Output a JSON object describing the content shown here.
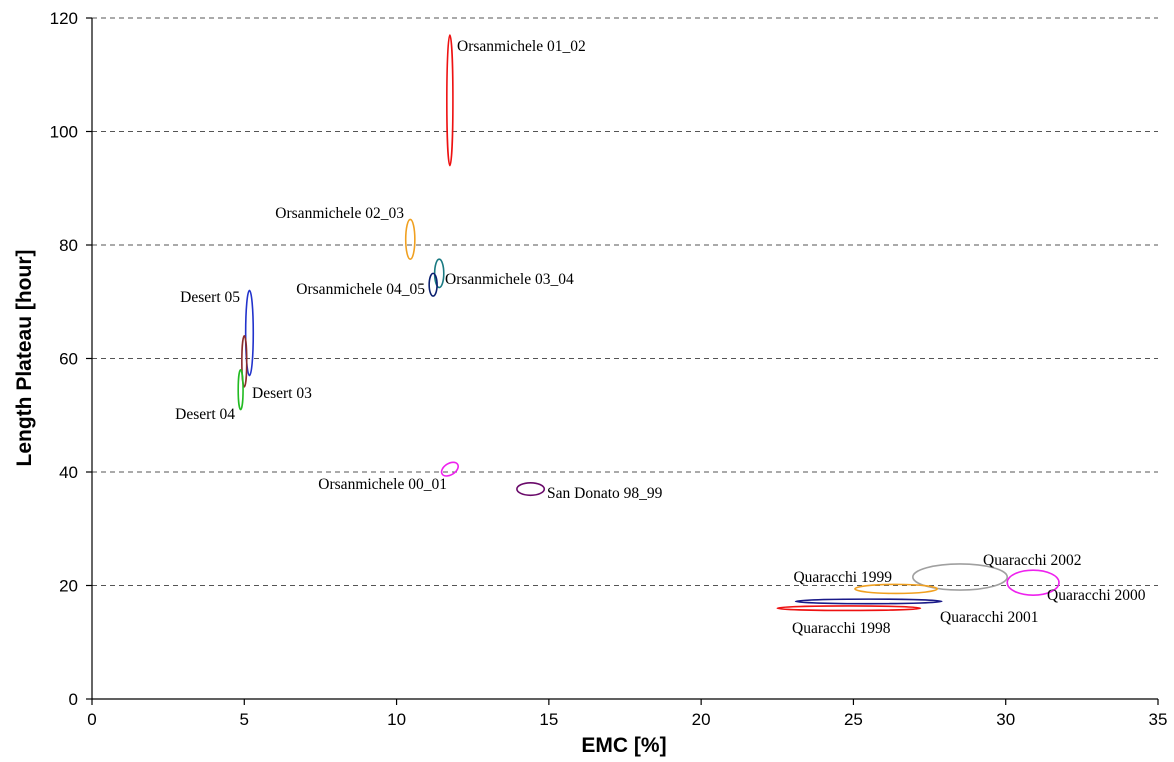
{
  "chart_data": {
    "type": "scatter",
    "title": "",
    "xlabel": "EMC  [%]",
    "ylabel": "Length Plateau [hour]",
    "xlim": [
      0,
      35
    ],
    "ylim": [
      0,
      120
    ],
    "xticks": [
      0,
      5,
      10,
      15,
      20,
      25,
      30,
      35
    ],
    "yticks": [
      0,
      20,
      40,
      60,
      80,
      100,
      120
    ],
    "grid": "horizontal dashed",
    "legend": "none",
    "marker": "ellipse",
    "series": [
      {
        "name": "Orsanmichele 01_02",
        "x": 11.75,
        "y": 105.5,
        "x_range": [
          11.65,
          11.85
        ],
        "y_range": [
          94,
          117
        ],
        "angle_deg": 0,
        "color": "#ee1111"
      },
      {
        "name": "Orsanmichele 02_03",
        "x": 10.45,
        "y": 81,
        "x_range": [
          10.3,
          10.6
        ],
        "y_range": [
          77.5,
          84.5
        ],
        "angle_deg": 0,
        "color": "#f0a020"
      },
      {
        "name": "Orsanmichele 03_04",
        "x": 11.4,
        "y": 75,
        "x_range": [
          11.25,
          11.55
        ],
        "y_range": [
          72.5,
          77.5
        ],
        "angle_deg": 0,
        "color": "#1a7a82"
      },
      {
        "name": "Orsanmichele 04_05",
        "x": 11.2,
        "y": 73,
        "x_range": [
          11.07,
          11.33
        ],
        "y_range": [
          71,
          75
        ],
        "angle_deg": 0,
        "color": "#0a1f6e"
      },
      {
        "name": "Desert 05",
        "x": 5.17,
        "y": 64.5,
        "x_range": [
          5.05,
          5.3
        ],
        "y_range": [
          57,
          72
        ],
        "angle_deg": 0,
        "color": "#2233cc"
      },
      {
        "name": "Desert 03",
        "x": 5.0,
        "y": 59.5,
        "x_range": [
          4.92,
          5.08
        ],
        "y_range": [
          55,
          64
        ],
        "angle_deg": 0,
        "color": "#8a2b2b"
      },
      {
        "name": "Desert 04",
        "x": 4.88,
        "y": 54.5,
        "x_range": [
          4.8,
          4.96
        ],
        "y_range": [
          51,
          58
        ],
        "angle_deg": 0,
        "color": "#22bb22"
      },
      {
        "name": "Orsanmichele 00_01",
        "x": 11.75,
        "y": 40.5,
        "x_range": [
          11.45,
          12.05
        ],
        "y_range": [
          39.5,
          41.5
        ],
        "angle_deg": 32,
        "color": "#ee22ee"
      },
      {
        "name": "San Donato 98_99",
        "x": 14.4,
        "y": 37,
        "x_range": [
          13.95,
          14.85
        ],
        "y_range": [
          35.9,
          38.1
        ],
        "angle_deg": 0,
        "color": "#6a0a6a"
      },
      {
        "name": "Quaracchi 2002",
        "x": 28.5,
        "y": 21.5,
        "x_range": [
          26.95,
          30.05
        ],
        "y_range": [
          19.2,
          23.8
        ],
        "angle_deg": 0,
        "color": "#a0a0a0"
      },
      {
        "name": "Quaracchi 2000",
        "x": 30.9,
        "y": 20.5,
        "x_range": [
          30.05,
          31.75
        ],
        "y_range": [
          18.3,
          22.7
        ],
        "angle_deg": 0,
        "color": "#ee22ee"
      },
      {
        "name": "Quaracchi 1999",
        "x": 26.4,
        "y": 19.4,
        "x_range": [
          25.05,
          27.75
        ],
        "y_range": [
          18.6,
          20.2
        ],
        "angle_deg": 0,
        "color": "#f0a020"
      },
      {
        "name": "Quaracchi 2001",
        "x": 25.5,
        "y": 17.2,
        "x_range": [
          23.1,
          27.9
        ],
        "y_range": [
          16.8,
          17.6
        ],
        "angle_deg": 0,
        "color": "#1a1a88"
      },
      {
        "name": "Quaracchi 1998",
        "x": 24.85,
        "y": 16.0,
        "x_range": [
          22.5,
          27.2
        ],
        "y_range": [
          15.6,
          16.4
        ],
        "angle_deg": 0,
        "color": "#ee1111"
      }
    ]
  }
}
